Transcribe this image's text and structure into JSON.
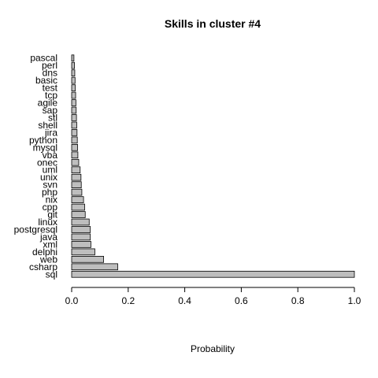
{
  "chart_data": {
    "type": "bar",
    "orientation": "horizontal",
    "title": "Skills in  cluster #4",
    "xlabel": "Probability",
    "ylabel": "",
    "xlim": [
      0,
      1
    ],
    "xticks": [
      "0.0",
      "0.2",
      "0.4",
      "0.6",
      "0.8",
      "1.0"
    ],
    "bar_color": "#bebebe",
    "grid": false,
    "categories": [
      "sql",
      "csharp",
      "web",
      "delphi",
      "xml",
      "java",
      "postgresql",
      "linux",
      "git",
      "cpp",
      "nix",
      "php",
      "svn",
      "unix",
      "uml",
      "onec",
      "vba",
      "mysql",
      "python",
      "jira",
      "shell",
      "stl",
      "sap",
      "agile",
      "tcp",
      "test",
      "basic",
      "dns",
      "perl",
      "pascal"
    ],
    "values": [
      1.0,
      0.163,
      0.113,
      0.082,
      0.068,
      0.066,
      0.066,
      0.062,
      0.048,
      0.046,
      0.042,
      0.036,
      0.034,
      0.033,
      0.03,
      0.025,
      0.022,
      0.021,
      0.02,
      0.019,
      0.018,
      0.017,
      0.016,
      0.015,
      0.014,
      0.013,
      0.012,
      0.011,
      0.01,
      0.008
    ]
  }
}
